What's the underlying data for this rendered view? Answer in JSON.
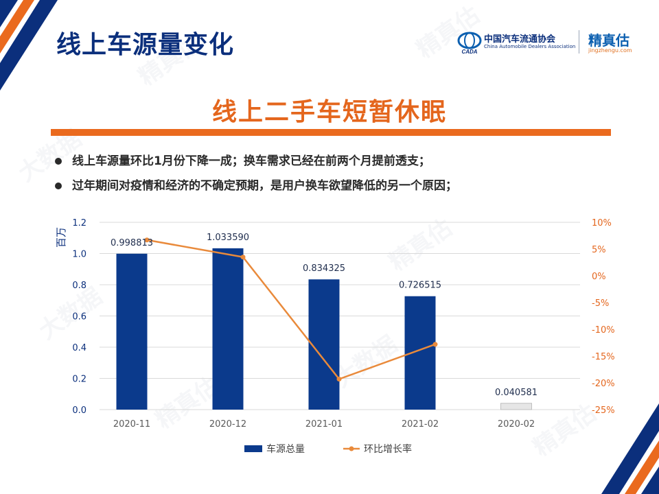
{
  "page": {
    "title": "线上车源量变化",
    "headline": "线上二手车短暂休眠",
    "bullets": [
      "线上车源量环比1月份下降一成；换车需求已经在前两个月提前透支；",
      "过年期间对疫情和经济的不确定预期，是用户换车欲望降低的另一个原因；"
    ]
  },
  "logos": {
    "cada_name": "中国汽车流通协会",
    "cada_english": "China Automobile Dealers Association",
    "cada_badge": "CADA",
    "jzg_name": "精真估",
    "jzg_url": "jingzhengu.com"
  },
  "watermark": {
    "text": "精真估",
    "text2": "大数据"
  },
  "colors": {
    "bar": "#0b3a8c",
    "bar_light": "#e6e6e6",
    "line": "#e98a3b",
    "title": "#0b2f7c",
    "accent": "#e4661d"
  },
  "chart_data": {
    "type": "bar",
    "categories": [
      "2020-11",
      "2020-12",
      "2021-01",
      "2021-02",
      "2020-02"
    ],
    "series": [
      {
        "name": "车源总量",
        "type": "bar",
        "axis": "left",
        "values": [
          0.998813,
          1.03359,
          0.834325,
          0.726515,
          0.040581
        ],
        "labels": [
          "0.998813",
          "1.033590",
          "0.834325",
          "0.726515",
          "0.040581"
        ]
      },
      {
        "name": "环比增长率",
        "type": "line",
        "axis": "right",
        "values": [
          6.7,
          3.5,
          -19.3,
          -12.8,
          null
        ]
      }
    ],
    "ylabel": "百万",
    "ylim": [
      0,
      1.2
    ],
    "yticks": [
      "0.0",
      "0.2",
      "0.4",
      "0.6",
      "0.8",
      "1.0",
      "1.2"
    ],
    "y2lim": [
      -25,
      10
    ],
    "y2ticks": [
      "-25%",
      "-20%",
      "-15%",
      "-10%",
      "-5%",
      "0%",
      "5%",
      "10%"
    ],
    "grid": true,
    "legend": "bottom"
  }
}
